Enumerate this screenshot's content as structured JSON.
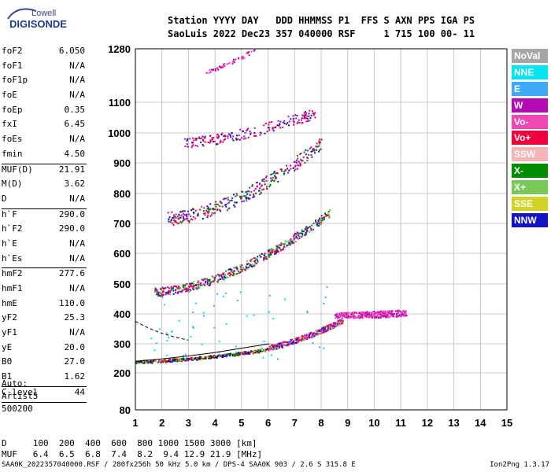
{
  "logo": {
    "line1": "Lowell",
    "line2": "DIGISONDE"
  },
  "header": {
    "row1": "Station YYYY DAY   DDD HHMMSS P1  FFS S AXN PPS IGA PS",
    "row2": "SaoLuis 2022 Dec23 357 040000 RSF     1 715 100 00- 11"
  },
  "params_group1": [
    {
      "name": "foF2",
      "value": "6.050"
    },
    {
      "name": "foF1",
      "value": "N/A"
    },
    {
      "name": "foF1p",
      "value": "N/A"
    },
    {
      "name": "foE",
      "value": "N/A"
    },
    {
      "name": "foEp",
      "value": "0.35"
    },
    {
      "name": "fxI",
      "value": "6.45"
    },
    {
      "name": "foEs",
      "value": "N/A"
    },
    {
      "name": "fmin",
      "value": "4.50"
    }
  ],
  "params_group2": [
    {
      "name": "MUF(D)",
      "value": "21.91"
    },
    {
      "name": "M(D)",
      "value": "3.62"
    },
    {
      "name": "D",
      "value": "N/A"
    }
  ],
  "params_group3": [
    {
      "name": "h`F",
      "value": "290.0"
    },
    {
      "name": "h`F2",
      "value": "290.0"
    },
    {
      "name": "h`E",
      "value": "N/A"
    },
    {
      "name": "h`Es",
      "value": "N/A"
    }
  ],
  "params_group4": [
    {
      "name": "hmF2",
      "value": "277.6"
    },
    {
      "name": "hmF1",
      "value": "N/A"
    },
    {
      "name": "hmE",
      "value": "110.0"
    },
    {
      "name": "yF2",
      "value": "25.3"
    },
    {
      "name": "yF1",
      "value": "N/A"
    },
    {
      "name": "yE",
      "value": "20.0"
    },
    {
      "name": "B0",
      "value": "27.0"
    },
    {
      "name": "B1",
      "value": "1.62"
    }
  ],
  "clevel": {
    "name": "C-level",
    "value": "44"
  },
  "auto": {
    "line1": "Auto:",
    "line2": "Artist5",
    "line3": "500200"
  },
  "muf_table": {
    "row1": "D     100  200  400  600  800 1000 1500 3000 [km]",
    "row2": "MUF   6.4  6.5  6.8  7.4  8.2  9.4 12.9 21.9 [MHz]"
  },
  "footer": {
    "left": "SAA0K_2022357040000.RSF / 280fx256h 50 kHz 5.0 km / DPS-4 SAA0K 903 / 2.6 S 315.8 E",
    "right": "Ion2Png 1.3.17"
  },
  "legend": [
    {
      "label": "NoVal",
      "color": "#a6a6a6"
    },
    {
      "label": "NNE",
      "color": "#00e5f0"
    },
    {
      "label": "E",
      "color": "#3fa9f5"
    },
    {
      "label": "W",
      "color": "#b40ab4"
    },
    {
      "label": "Vo-",
      "color": "#f246b4"
    },
    {
      "label": "Vo+",
      "color": "#f0003c"
    },
    {
      "label": "SSW",
      "color": "#f5b4b4"
    },
    {
      "label": "X-",
      "color": "#008c00"
    },
    {
      "label": "X+",
      "color": "#78c85a"
    },
    {
      "label": "SSE",
      "color": "#d2d228"
    },
    {
      "label": "NNW",
      "color": "#1414c8"
    }
  ],
  "chart_data": {
    "type": "scatter",
    "xlim": [
      1,
      15
    ],
    "ylim": [
      80,
      1280
    ],
    "x_ticks": [
      "1",
      "2",
      "3",
      "4",
      "5",
      "6",
      "7",
      "8",
      "9",
      "10",
      "11",
      "12",
      "13",
      "14",
      "15"
    ],
    "y_ticks": [
      "80",
      "200",
      "300",
      "400",
      "500",
      "600",
      "700",
      "800",
      "900",
      "1000",
      "1100",
      "1280"
    ],
    "y_tick_values": [
      80,
      200,
      300,
      400,
      500,
      600,
      700,
      800,
      900,
      1000,
      1100,
      1280
    ],
    "grid": true,
    "series": [
      {
        "fmin": 1.0,
        "fmax": 6.0,
        "h0": 238,
        "h1": 280,
        "exp": 1.6,
        "count": 420,
        "spread": 10,
        "colors": [
          "#1414c8",
          "#008c00",
          "#d2d228",
          "#f0003c",
          "#000000"
        ]
      },
      {
        "fmin": 6.0,
        "fmax": 8.8,
        "h0": 285,
        "h1": 375,
        "exp": 1.3,
        "count": 360,
        "spread": 18,
        "colors": [
          "#f0003c",
          "#f246b4",
          "#b40ab4",
          "#78c85a",
          "#1414c8"
        ]
      },
      {
        "fmin": 8.5,
        "fmax": 11.2,
        "h0": 390,
        "h1": 400,
        "exp": 1.0,
        "count": 320,
        "spread": 22,
        "colors": [
          "#b40ab4",
          "#f246b4"
        ]
      },
      {
        "fmin": 1.7,
        "fmax": 8.3,
        "h0": 470,
        "h1": 730,
        "exp": 1.7,
        "count": 520,
        "spread": 28,
        "colors": [
          "#1414c8",
          "#b40ab4",
          "#f0003c",
          "#008c00",
          "#78c85a"
        ]
      },
      {
        "fmin": 2.2,
        "fmax": 8.0,
        "h0": 710,
        "h1": 960,
        "exp": 1.7,
        "count": 320,
        "spread": 45,
        "colors": [
          "#b40ab4",
          "#1414c8",
          "#f0003c",
          "#008c00"
        ]
      },
      {
        "fmin": 2.8,
        "fmax": 7.8,
        "h0": 960,
        "h1": 1060,
        "exp": 1.4,
        "count": 190,
        "spread": 35,
        "colors": [
          "#b40ab4",
          "#1414c8",
          "#f0003c"
        ]
      },
      {
        "fmin": 3.6,
        "fmax": 5.5,
        "h0": 1200,
        "h1": 1275,
        "exp": 1.2,
        "count": 50,
        "spread": 15,
        "colors": [
          "#b40ab4",
          "#f246b4"
        ]
      }
    ],
    "profile_curve": [
      [
        1.0,
        240
      ],
      [
        2.0,
        248
      ],
      [
        3.0,
        258
      ],
      [
        4.0,
        270
      ],
      [
        5.0,
        285
      ],
      [
        6.05,
        300
      ]
    ],
    "upper_curve": [
      [
        1.0,
        375
      ],
      [
        1.5,
        352
      ],
      [
        2.0,
        335
      ],
      [
        2.5,
        322
      ],
      [
        3.0,
        312
      ]
    ]
  }
}
